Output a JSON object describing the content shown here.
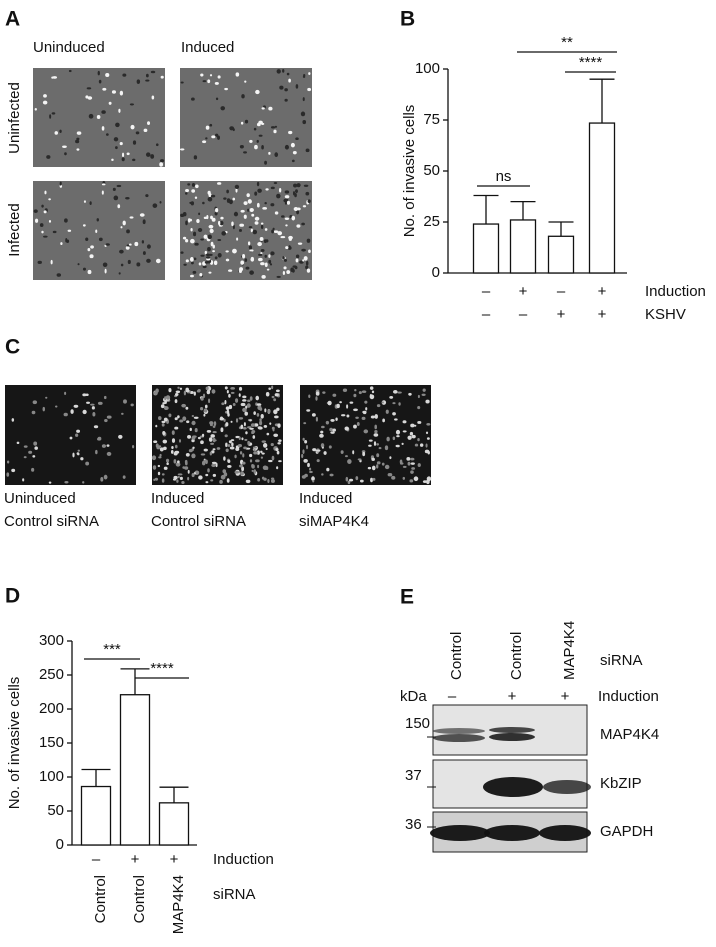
{
  "panel_a": {
    "label": "A",
    "columns": [
      "Uninduced",
      "Induced"
    ],
    "rows": [
      "Uninfected",
      "Infected"
    ]
  },
  "panel_c": {
    "label": "C",
    "captions": [
      [
        "Uninduced",
        "Control siRNA"
      ],
      [
        "Induced",
        "Control siRNA"
      ],
      [
        "Induced",
        "siMAP4K4"
      ]
    ]
  },
  "panel_e": {
    "label": "E",
    "lanes": [
      "Control",
      "Control",
      "MAP4K4"
    ],
    "lanes_label": "siRNA",
    "kda_label": "kDa",
    "induction": [
      "–",
      "+",
      "+"
    ],
    "induction_label": "Induction",
    "markers": [
      "150",
      "37",
      "36"
    ],
    "proteins": [
      "MAP4K4",
      "KbZIP",
      "GAPDH"
    ]
  },
  "chart_data": [
    {
      "type": "bar",
      "panel": "B",
      "y_label": "No. of invasive cells",
      "values": [
        24,
        26,
        18,
        73.5
      ],
      "errors": [
        14,
        9,
        7,
        21.5
      ],
      "color": "#ffffff",
      "ylim": [
        0,
        100
      ],
      "yticks": [
        0,
        25,
        50,
        75,
        100
      ],
      "category_rows": [
        {
          "name": "Induction",
          "labels": [
            "–",
            "+",
            "–",
            "+"
          ]
        },
        {
          "name": "KSHV",
          "labels": [
            "–",
            "–",
            "+",
            "+"
          ]
        }
      ],
      "annotations": [
        "ns",
        "****",
        "**"
      ]
    },
    {
      "type": "bar",
      "panel": "D",
      "y_label": "No. of invasive cells",
      "values": [
        86,
        221,
        62
      ],
      "errors": [
        25,
        38,
        23
      ],
      "color": "#ffffff",
      "ylim": [
        0,
        300
      ],
      "yticks": [
        0,
        50,
        100,
        150,
        200,
        250,
        300
      ],
      "category_rows": [
        {
          "name": "Induction",
          "labels": [
            "–",
            "+",
            "+"
          ]
        },
        {
          "name": "siRNA",
          "labels": [
            "Control",
            "Control",
            "MAP4K4"
          ]
        }
      ],
      "annotations": [
        "***",
        "****"
      ]
    }
  ]
}
